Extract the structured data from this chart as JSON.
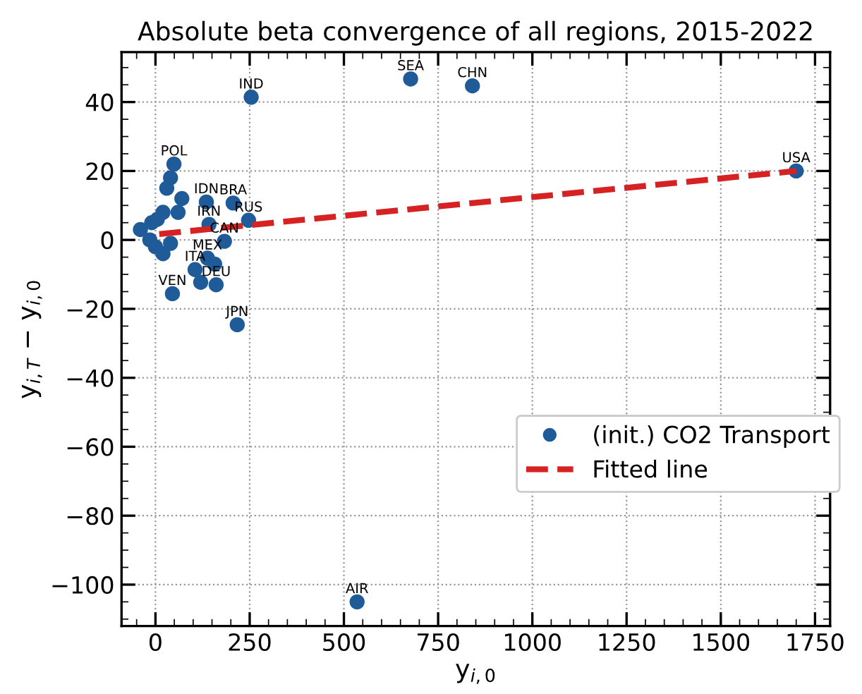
{
  "chart_data": {
    "type": "scatter",
    "title": "Absolute beta convergence of all regions, 2015-2022",
    "xlabel": "y$_{i,0}$",
    "ylabel": "y$_{i,T}$ − y$_{i,0}$",
    "series": [
      {
        "name": "(init.) CO2 Transport",
        "color": "#1f5b98",
        "marker": "circle",
        "x": [
          254,
          677,
          841,
          1700,
          535,
          217,
          45,
          49,
          206,
          247,
          135,
          142,
          183,
          138,
          105,
          161,
          120,
          157,
          -40,
          -10,
          5,
          -15,
          0,
          20,
          40,
          60,
          70,
          30,
          40,
          20
        ],
        "values": [
          41.4,
          46.7,
          44.7,
          20,
          -105,
          -24.6,
          -15.6,
          22,
          10.7,
          5.7,
          11,
          4.5,
          -0.4,
          -5.3,
          -8.6,
          -13,
          -12.3,
          -7,
          3,
          5,
          6,
          0,
          -2,
          8,
          -1,
          8,
          12,
          15,
          18,
          -4
        ]
      },
      {
        "name": "Fitted line",
        "type": "line",
        "color": "#d62222",
        "line_style": "dashed",
        "marker": "none",
        "x": [
          10,
          1700
        ],
        "values": [
          1.7,
          20
        ]
      }
    ],
    "annotations": [
      {
        "text": "IND",
        "x": 254,
        "y": 41.4
      },
      {
        "text": "SEA",
        "x": 677,
        "y": 46.7
      },
      {
        "text": "CHN",
        "x": 841,
        "y": 44.7
      },
      {
        "text": "USA",
        "x": 1700,
        "y": 20
      },
      {
        "text": "AIR",
        "x": 535,
        "y": -105
      },
      {
        "text": "JPN",
        "x": 217,
        "y": -24.6
      },
      {
        "text": "VEN",
        "x": 45,
        "y": -15.6
      },
      {
        "text": "POL",
        "x": 49,
        "y": 22
      },
      {
        "text": "BRA",
        "x": 206,
        "y": 10.7
      },
      {
        "text": "RUS",
        "x": 247,
        "y": 5.7
      },
      {
        "text": "IDN",
        "x": 135,
        "y": 11
      },
      {
        "text": "IRN",
        "x": 142,
        "y": 4.5
      },
      {
        "text": "CAN",
        "x": 183,
        "y": -0.4
      },
      {
        "text": "MEX",
        "x": 138,
        "y": -5.3
      },
      {
        "text": "ITA",
        "x": 105,
        "y": -8.6
      },
      {
        "text": "DEU",
        "x": 161,
        "y": -13
      }
    ],
    "xlim": [
      -90,
      1790
    ],
    "ylim": [
      -112,
      54.5
    ],
    "xticks": [
      0,
      250,
      500,
      750,
      1000,
      1250,
      1500,
      1750
    ],
    "yticks": [
      {
        "value": -100,
        "label": "−100"
      },
      {
        "value": -80,
        "label": "−80"
      },
      {
        "value": -60,
        "label": "−60"
      },
      {
        "value": -40,
        "label": "−40"
      },
      {
        "value": -20,
        "label": "−20"
      },
      0,
      20,
      40
    ],
    "grid": true,
    "legend": "right"
  }
}
